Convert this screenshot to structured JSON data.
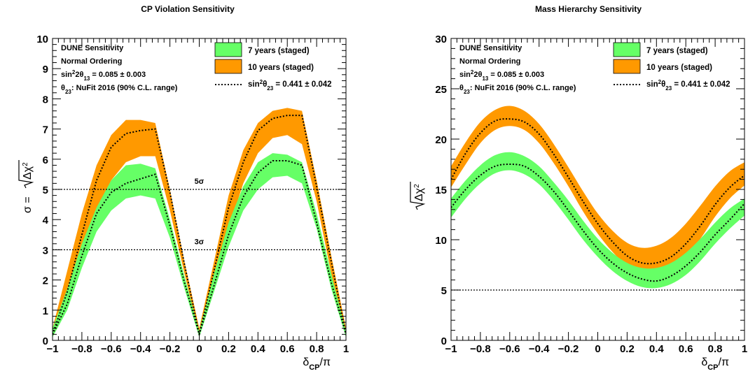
{
  "chart_data": [
    {
      "type": "area",
      "title": "CP Violation Sensitivity",
      "xlabel": "δCP/π",
      "ylabel": "σ = √Δχ²",
      "xlim": [
        -1,
        1
      ],
      "ylim": [
        0,
        10
      ],
      "x_ticks": [
        "−1",
        "−0.8",
        "−0.6",
        "−0.4",
        "−0.2",
        "0",
        "0.2",
        "0.4",
        "0.6",
        "0.8",
        "1"
      ],
      "y_ticks": [
        "0",
        "1",
        "2",
        "3",
        "4",
        "5",
        "6",
        "7",
        "8",
        "9",
        "10"
      ],
      "grid": false,
      "legend_position": "top-right",
      "info_text": [
        "DUNE Sensitivity",
        "Normal Ordering",
        "sin²2θ₁₃ = 0.085 ± 0.003",
        "θ₂₃: NuFit 2016 (90% C.L. range)"
      ],
      "legend": [
        {
          "label": "7 years (staged)",
          "color": "#66ff66",
          "kind": "band"
        },
        {
          "label": "10 years (staged)",
          "color": "#ff9900",
          "kind": "band"
        },
        {
          "label": "sin²θ₂₃ = 0.441 ± 0.042",
          "color": "#000000",
          "kind": "dotted"
        }
      ],
      "reference_lines": [
        {
          "label": "5σ",
          "y": 5
        },
        {
          "label": "3σ",
          "y": 3
        }
      ],
      "x": [
        -1,
        -0.9,
        -0.8,
        -0.7,
        -0.6,
        -0.5,
        -0.4,
        -0.3,
        -0.2,
        -0.1,
        0,
        0.1,
        0.2,
        0.3,
        0.4,
        0.5,
        0.6,
        0.7,
        0.8,
        0.9,
        1
      ],
      "series": [
        {
          "name": "10 years (staged)",
          "kind": "band",
          "color": "#ff9900",
          "lower": [
            0.15,
            1.4,
            2.9,
            4.3,
            5.3,
            5.9,
            6.1,
            6.1,
            4.3,
            2.2,
            0.15,
            1.9,
            3.7,
            5.2,
            6.2,
            6.7,
            6.8,
            6.5,
            4.6,
            2.2,
            0.15
          ],
          "upper": [
            0.4,
            2.3,
            4.2,
            5.8,
            6.8,
            7.3,
            7.3,
            7.2,
            5.0,
            2.6,
            0.4,
            2.6,
            4.8,
            6.3,
            7.2,
            7.6,
            7.7,
            7.6,
            5.3,
            2.8,
            0.4
          ]
        },
        {
          "name": "7 years (staged)",
          "kind": "band",
          "color": "#66ff66",
          "lower": [
            0.1,
            1.0,
            2.4,
            3.6,
            4.3,
            4.7,
            4.8,
            4.7,
            3.4,
            1.7,
            0.1,
            1.6,
            3.1,
            4.3,
            5.0,
            5.4,
            5.45,
            5.2,
            3.7,
            1.7,
            0.1
          ],
          "upper": [
            0.4,
            1.7,
            3.2,
            4.4,
            5.3,
            5.8,
            5.85,
            5.7,
            4.0,
            2.1,
            0.3,
            2.2,
            3.9,
            5.1,
            5.9,
            6.2,
            6.15,
            5.9,
            4.2,
            2.2,
            0.3
          ]
        },
        {
          "name": "10 years central",
          "kind": "dotted",
          "color": "#000000",
          "values": [
            0.2,
            1.6,
            3.5,
            5.3,
            6.4,
            6.85,
            6.95,
            7.0,
            4.9,
            2.5,
            0.2,
            2.3,
            4.4,
            5.9,
            6.95,
            7.35,
            7.45,
            7.45,
            5.1,
            2.6,
            0.2
          ]
        },
        {
          "name": "7 years central",
          "kind": "dotted",
          "color": "#000000",
          "values": [
            0.2,
            1.2,
            2.8,
            4.2,
            4.9,
            5.2,
            5.35,
            5.5,
            3.8,
            1.9,
            0.2,
            1.8,
            3.5,
            4.75,
            5.55,
            5.95,
            5.95,
            5.8,
            3.9,
            1.9,
            0.2
          ]
        }
      ]
    },
    {
      "type": "area",
      "title": "Mass Hierarchy Sensitivity",
      "xlabel": "δCP/π",
      "ylabel": "√Δχ²",
      "xlim": [
        -1,
        1
      ],
      "ylim": [
        0,
        30
      ],
      "x_ticks": [
        "−1",
        "−0.8",
        "−0.6",
        "−0.4",
        "−0.2",
        "0",
        "0.2",
        "0.4",
        "0.6",
        "0.8",
        "1"
      ],
      "y_ticks": [
        "0",
        "5",
        "10",
        "15",
        "20",
        "25",
        "30"
      ],
      "grid": false,
      "legend_position": "top-right",
      "info_text": [
        "DUNE Sensitivity",
        "Normal Ordering",
        "sin²2θ₁₃ = 0.085 ± 0.003",
        "θ₂₃: NuFit 2016 (90% C.L. range)"
      ],
      "legend": [
        {
          "label": "7 years (staged)",
          "color": "#66ff66",
          "kind": "band"
        },
        {
          "label": "10 years (staged)",
          "color": "#ff9900",
          "kind": "band"
        },
        {
          "label": "sin²θ₂₃ = 0.441 ± 0.042",
          "color": "#000000",
          "kind": "dotted"
        }
      ],
      "reference_lines": [
        {
          "label": "",
          "y": 5
        }
      ],
      "x": [
        -1,
        -0.9,
        -0.8,
        -0.7,
        -0.6,
        -0.5,
        -0.4,
        -0.3,
        -0.2,
        -0.1,
        0,
        0.1,
        0.2,
        0.3,
        0.4,
        0.5,
        0.6,
        0.7,
        0.8,
        0.9,
        1
      ],
      "series": [
        {
          "name": "10 years (staged)",
          "kind": "band",
          "color": "#ff9900",
          "lower": [
            15.2,
            17.5,
            19.6,
            20.9,
            21.3,
            20.9,
            19.6,
            17.6,
            15.3,
            12.8,
            10.6,
            8.8,
            7.4,
            6.7,
            6.6,
            7.1,
            8.3,
            10.1,
            12.3,
            14.1,
            15.4
          ],
          "upper": [
            17.3,
            19.7,
            21.7,
            22.9,
            23.3,
            22.8,
            21.5,
            19.5,
            17.2,
            14.8,
            12.6,
            10.9,
            9.7,
            9.2,
            9.4,
            10.2,
            11.6,
            13.4,
            15.3,
            16.8,
            17.7
          ]
        },
        {
          "name": "7 years (staged)",
          "kind": "band",
          "color": "#66ff66",
          "lower": [
            12.2,
            14.1,
            15.6,
            16.6,
            16.9,
            16.5,
            15.5,
            13.9,
            12.0,
            10.0,
            8.3,
            6.9,
            5.9,
            5.3,
            5.2,
            5.6,
            6.5,
            7.9,
            9.6,
            11.1,
            12.4
          ],
          "upper": [
            14.1,
            15.9,
            17.4,
            18.4,
            18.7,
            18.3,
            17.3,
            15.7,
            13.9,
            11.9,
            10.1,
            8.7,
            7.7,
            7.2,
            7.2,
            7.7,
            8.7,
            10.1,
            11.7,
            13.1,
            14.1
          ]
        },
        {
          "name": "10 years central",
          "kind": "dotted",
          "color": "#000000",
          "values": [
            16.0,
            18.6,
            20.6,
            21.8,
            22.0,
            21.7,
            20.5,
            18.5,
            16.2,
            13.8,
            11.6,
            9.8,
            8.4,
            7.7,
            7.7,
            8.3,
            9.6,
            11.4,
            13.5,
            15.2,
            16.4
          ]
        },
        {
          "name": "7 years central",
          "kind": "dotted",
          "color": "#000000",
          "values": [
            13.2,
            15.0,
            16.4,
            17.3,
            17.5,
            17.3,
            16.3,
            14.8,
            12.9,
            10.9,
            9.1,
            7.7,
            6.7,
            6.1,
            5.9,
            6.4,
            7.4,
            8.8,
            10.5,
            12.0,
            13.6
          ]
        }
      ]
    }
  ]
}
